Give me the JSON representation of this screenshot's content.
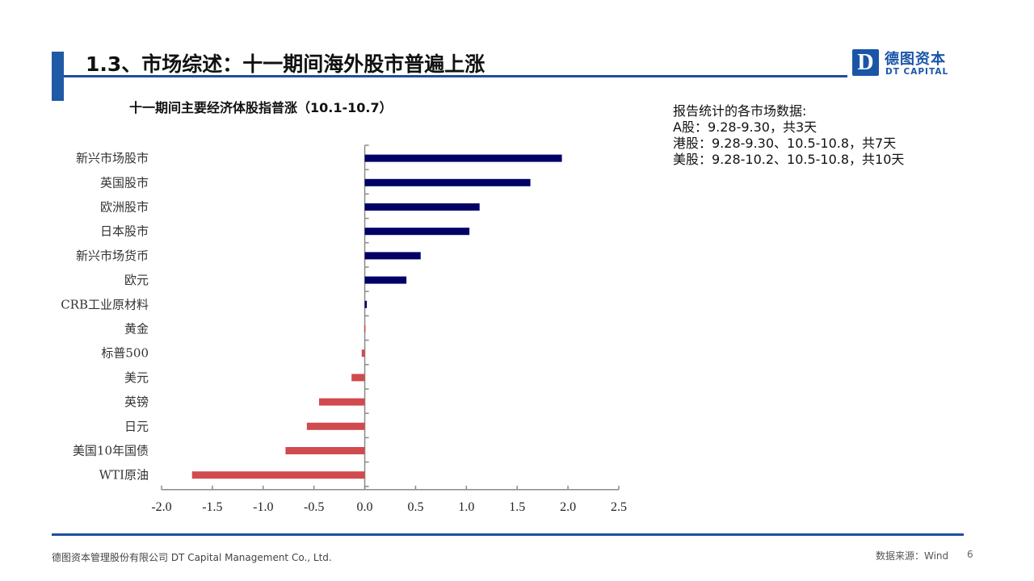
{
  "header": {
    "title": "1.3、市场综述：十一期间海外股市普遍上涨",
    "logo": {
      "mark": "D",
      "cn": "德图资本",
      "en": "DT CAPITAL"
    }
  },
  "note": {
    "lines": [
      "报告统计的各市场数据:",
      "A股：9.28-9.30，共3天",
      "港股：9.28-9.30、10.5-10.8，共7天",
      "美股：9.28-10.2、10.5-10.8，共10天"
    ]
  },
  "footer": {
    "company": "德图资本管理股份有限公司  DT Capital  Management  Co., Ltd.",
    "source": "数据来源：Wind",
    "page": "6"
  },
  "colors": {
    "positive": "#000066",
    "negative": "#d04a4e",
    "accent": "#1f4e9c"
  },
  "chart_data": {
    "type": "bar",
    "orientation": "horizontal",
    "title": "十一期间主要经济体股指普涨（10.1-10.7）",
    "xlabel": "",
    "ylabel": "",
    "categories": [
      "新兴市场股市",
      "英国股市",
      "欧洲股市",
      "日本股市",
      "新兴市场货币",
      "欧元",
      "CRB工业原材料",
      "黄金",
      "标普500",
      "美元",
      "英镑",
      "日元",
      "美国10年国债",
      "WTI原油"
    ],
    "values": [
      1.94,
      1.63,
      1.13,
      1.03,
      0.55,
      0.41,
      0.02,
      -0.005,
      -0.03,
      -0.13,
      -0.45,
      -0.57,
      -0.78,
      -1.7
    ],
    "xlim": [
      -2.0,
      2.5
    ],
    "xticks": [
      "-2.0",
      "-1.5",
      "-1.0",
      "-0.5",
      "0.0",
      "0.5",
      "1.0",
      "1.5",
      "2.0",
      "2.5"
    ],
    "grid": false,
    "legend": "none"
  }
}
